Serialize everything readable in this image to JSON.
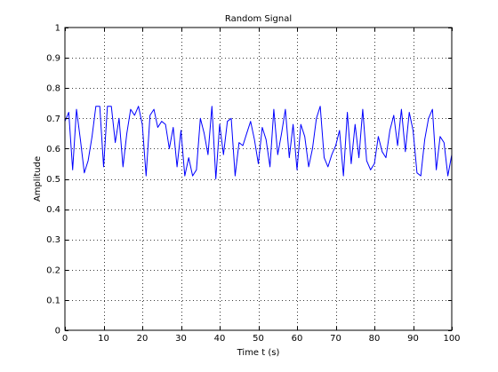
{
  "chart_data": {
    "type": "line",
    "title": "Random Signal",
    "xlabel": "Time t (s)",
    "ylabel": "Amplitude",
    "xlim": [
      0,
      100
    ],
    "ylim": [
      0,
      1
    ],
    "xticks": [
      0,
      10,
      20,
      30,
      40,
      50,
      60,
      70,
      80,
      90,
      100
    ],
    "yticks": [
      0,
      0.1,
      0.2,
      0.3,
      0.4,
      0.5,
      0.6,
      0.7,
      0.8,
      0.9,
      1
    ],
    "xtick_labels": [
      "0",
      "10",
      "20",
      "30",
      "40",
      "50",
      "60",
      "70",
      "80",
      "90",
      "100"
    ],
    "ytick_labels": [
      "0",
      "0.1",
      "0.2",
      "0.3",
      "0.4",
      "0.5",
      "0.6",
      "0.7",
      "0.8",
      "0.9",
      "1"
    ],
    "grid": true,
    "line_color": "#0000ff",
    "series": [
      {
        "x": [
          0,
          1,
          2,
          3,
          4,
          5,
          6,
          7,
          8,
          9,
          10,
          11,
          12,
          13,
          14,
          15,
          16,
          17,
          18,
          19,
          20,
          21,
          22,
          23,
          24,
          25,
          26,
          27,
          28,
          29,
          30,
          31,
          32,
          33,
          34,
          35,
          36,
          37,
          38,
          39,
          40,
          41,
          42,
          43,
          44,
          45,
          46,
          47,
          48,
          49,
          50,
          51,
          52,
          53,
          54,
          55,
          56,
          57,
          58,
          59,
          60,
          61,
          62,
          63,
          64,
          65,
          66,
          67,
          68,
          69,
          70,
          71,
          72,
          73,
          74,
          75,
          76,
          77,
          78,
          79,
          80,
          81,
          82,
          83,
          84,
          85,
          86,
          87,
          88,
          89,
          90,
          91,
          92,
          93,
          94,
          95,
          96,
          97,
          98,
          99,
          100
        ],
        "values": [
          0.69,
          0.72,
          0.53,
          0.73,
          0.63,
          0.52,
          0.56,
          0.64,
          0.74,
          0.74,
          0.54,
          0.74,
          0.74,
          0.62,
          0.7,
          0.54,
          0.65,
          0.73,
          0.71,
          0.74,
          0.68,
          0.51,
          0.71,
          0.73,
          0.67,
          0.69,
          0.68,
          0.6,
          0.67,
          0.54,
          0.66,
          0.51,
          0.57,
          0.51,
          0.53,
          0.7,
          0.65,
          0.58,
          0.74,
          0.5,
          0.68,
          0.58,
          0.69,
          0.7,
          0.51,
          0.62,
          0.61,
          0.65,
          0.69,
          0.63,
          0.55,
          0.67,
          0.63,
          0.54,
          0.73,
          0.58,
          0.65,
          0.73,
          0.57,
          0.68,
          0.53,
          0.68,
          0.64,
          0.54,
          0.6,
          0.7,
          0.74,
          0.57,
          0.54,
          0.58,
          0.61,
          0.66,
          0.51,
          0.72,
          0.55,
          0.68,
          0.57,
          0.73,
          0.56,
          0.53,
          0.55,
          0.64,
          0.59,
          0.57,
          0.66,
          0.71,
          0.61,
          0.73,
          0.59,
          0.72,
          0.66,
          0.52,
          0.51,
          0.63,
          0.7,
          0.73,
          0.53,
          0.64,
          0.62,
          0.51,
          0.58
        ]
      }
    ]
  }
}
